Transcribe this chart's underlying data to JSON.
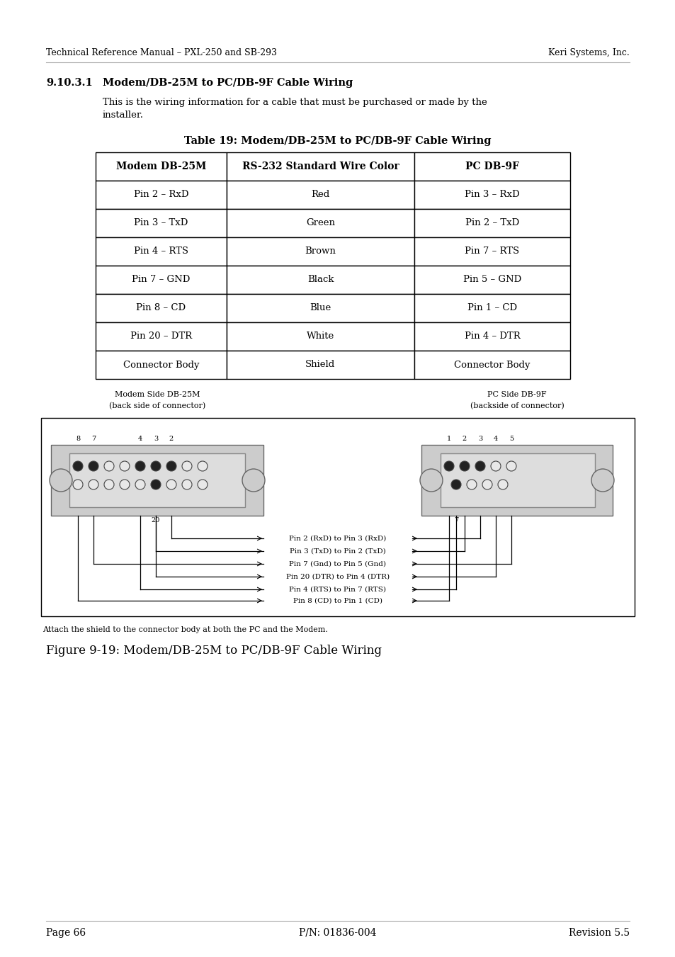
{
  "header_left": "Technical Reference Manual – PXL-250 and SB-293",
  "header_right": "Keri Systems, Inc.",
  "section": "9.10.3.1",
  "section_title": "Modem/DB-25M to PC/DB-9F Cable Wiring",
  "body_text_1": "This is the wiring information for a cable that must be purchased or made by the",
  "body_text_2": "installer.",
  "table_title": "Table 19: Modem/DB-25M to PC/DB-9F Cable Wiring",
  "col_headers": [
    "Modem DB-25M",
    "RS-232 Standard Wire Color",
    "PC DB-9F"
  ],
  "rows": [
    [
      "Pin 2 – RxD",
      "Red",
      "Pin 3 – RxD"
    ],
    [
      "Pin 3 – TxD",
      "Green",
      "Pin 2 – TxD"
    ],
    [
      "Pin 4 – RTS",
      "Brown",
      "Pin 7 – RTS"
    ],
    [
      "Pin 7 – GND",
      "Black",
      "Pin 5 – GND"
    ],
    [
      "Pin 8 – CD",
      "Blue",
      "Pin 1 – CD"
    ],
    [
      "Pin 20 – DTR",
      "White",
      "Pin 4 – DTR"
    ],
    [
      "Connector Body",
      "Shield",
      "Connector Body"
    ]
  ],
  "modem_label1": "Modem Side DB-25M",
  "modem_label2": "(back side of connector)",
  "pc_label1": "PC Side DB-9F",
  "pc_label2": "(backside of connector)",
  "wire_labels": [
    "Pin 2 (RxD) to Pin 3 (RxD)",
    "Pin 3 (TxD) to Pin 2 (TxD)",
    "Pin 7 (Gnd) to Pin 5 (Gnd)",
    "Pin 20 (DTR) to Pin 4 (DTR)",
    "Pin 4 (RTS) to Pin 7 (RTS)",
    "Pin 8 (CD) to Pin 1 (CD)"
  ],
  "shield_note": "Attach the shield to the connector body at both the PC and the Modem.",
  "figure_caption": "Figure 9-19: Modem/DB-25M to PC/DB-9F Cable Wiring",
  "footer_left": "Page 66",
  "footer_center": "P/N: 01836-004",
  "footer_right": "Revision 5.5",
  "bg_color": "#ffffff"
}
